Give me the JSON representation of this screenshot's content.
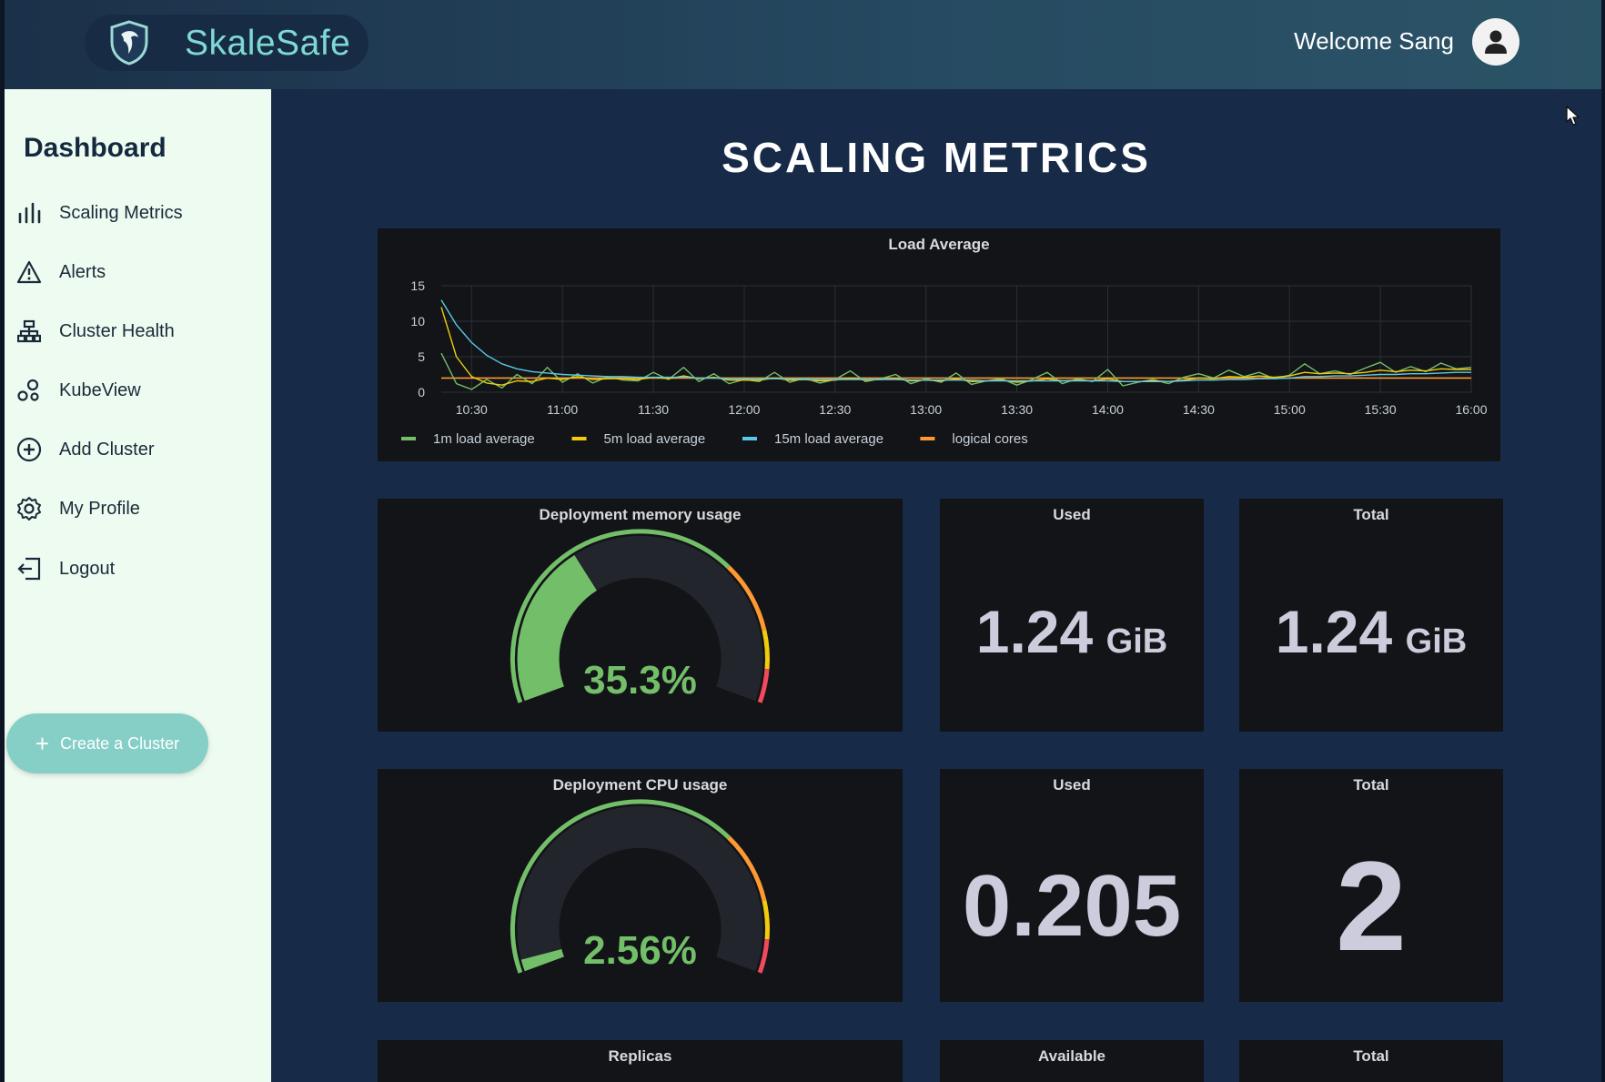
{
  "app": {
    "name": "SkaleSafe"
  },
  "header": {
    "welcome": "Welcome Sang"
  },
  "sidebar": {
    "title": "Dashboard",
    "items": [
      {
        "label": "Scaling Metrics",
        "icon": "bar-chart-icon"
      },
      {
        "label": "Alerts",
        "icon": "warning-icon"
      },
      {
        "label": "Cluster Health",
        "icon": "hierarchy-icon"
      },
      {
        "label": "KubeView",
        "icon": "bubbles-icon"
      },
      {
        "label": "Add Cluster",
        "icon": "plus-circle-icon"
      },
      {
        "label": "My Profile",
        "icon": "gear-icon"
      },
      {
        "label": "Logout",
        "icon": "logout-icon"
      }
    ],
    "create_button": "Create a Cluster"
  },
  "main": {
    "title": "SCALING METRICS"
  },
  "panels": {
    "memory": {
      "title": "Deployment memory usage",
      "value": "35.3%",
      "fraction": 0.353
    },
    "memory_used": {
      "title": "Used",
      "value": "1.24",
      "unit": "GiB"
    },
    "memory_total": {
      "title": "Total",
      "value": "1.24",
      "unit": "GiB"
    },
    "cpu": {
      "title": "Deployment CPU usage",
      "value": "2.56%",
      "fraction": 0.0256
    },
    "cpu_used": {
      "title": "Used",
      "value": "0.205"
    },
    "cpu_total": {
      "title": "Total",
      "value": "2"
    },
    "replicas": {
      "title": "Replicas"
    },
    "available": {
      "title": "Available"
    },
    "replicas_total": {
      "title": "Total"
    }
  },
  "colors": {
    "green": "#73bf69",
    "yellow": "#f2cc0c",
    "orange": "#ff9830",
    "red": "#f2495c",
    "blue": "#5ac8e8",
    "accent": "#7fd8d2"
  },
  "chart_data": {
    "type": "line",
    "title": "Load Average",
    "x": [
      "10:20",
      "10:25",
      "10:30",
      "10:35",
      "10:40",
      "10:45",
      "10:50",
      "10:55",
      "11:00",
      "11:05",
      "11:10",
      "11:15",
      "11:20",
      "11:25",
      "11:30",
      "11:35",
      "11:40",
      "11:45",
      "11:50",
      "11:55",
      "12:00",
      "12:05",
      "12:10",
      "12:15",
      "12:20",
      "12:25",
      "12:30",
      "12:35",
      "12:40",
      "12:45",
      "12:50",
      "12:55",
      "13:00",
      "13:05",
      "13:10",
      "13:15",
      "13:20",
      "13:25",
      "13:30",
      "13:35",
      "13:40",
      "13:45",
      "13:50",
      "13:55",
      "14:00",
      "14:05",
      "14:10",
      "14:15",
      "14:20",
      "14:25",
      "14:30",
      "14:35",
      "14:40",
      "14:45",
      "14:50",
      "14:55",
      "15:00",
      "15:05",
      "15:10",
      "15:15",
      "15:20",
      "15:25",
      "15:30",
      "15:35",
      "15:40",
      "15:45",
      "15:50",
      "15:55",
      "16:00"
    ],
    "xticks": [
      "10:30",
      "11:00",
      "11:30",
      "12:00",
      "12:30",
      "13:00",
      "13:30",
      "14:00",
      "14:30",
      "15:00",
      "15:30",
      "16:00"
    ],
    "ylim": [
      0,
      15
    ],
    "yticks": [
      0,
      5,
      10,
      15
    ],
    "series": [
      {
        "name": "1m load average",
        "color": "#73bf69",
        "values": [
          5.5,
          1.2,
          0.4,
          1.8,
          0.6,
          2.5,
          1.2,
          3.5,
          1.4,
          2.6,
          1.3,
          2.2,
          1.7,
          1.6,
          2.8,
          1.8,
          3.5,
          1.5,
          2.6,
          1.2,
          1.8,
          1.5,
          2.8,
          1.4,
          2.0,
          1.3,
          1.8,
          3.0,
          1.5,
          1.9,
          2.5,
          1.2,
          1.9,
          1.4,
          2.7,
          1.1,
          1.6,
          1.9,
          1.0,
          1.8,
          2.8,
          1.2,
          1.9,
          1.5,
          3.2,
          0.9,
          1.4,
          1.8,
          1.2,
          2.1,
          2.6,
          2.0,
          3.1,
          2.2,
          2.8,
          1.9,
          2.4,
          4.0,
          2.6,
          3.0,
          2.5,
          3.4,
          4.2,
          2.8,
          3.6,
          2.9,
          4.1,
          3.3,
          3.5
        ]
      },
      {
        "name": "5m load average",
        "color": "#f2cc0c",
        "values": [
          12.0,
          5.0,
          2.2,
          1.3,
          1.0,
          1.6,
          1.5,
          2.0,
          1.8,
          2.2,
          1.8,
          1.9,
          1.9,
          1.8,
          2.1,
          1.9,
          2.3,
          1.9,
          2.1,
          1.7,
          1.7,
          1.7,
          2.0,
          1.7,
          1.8,
          1.6,
          1.7,
          2.0,
          1.7,
          1.8,
          1.9,
          1.6,
          1.7,
          1.6,
          1.9,
          1.5,
          1.6,
          1.7,
          1.4,
          1.6,
          1.9,
          1.6,
          1.7,
          1.6,
          1.9,
          1.5,
          1.5,
          1.6,
          1.5,
          1.7,
          2.0,
          1.9,
          2.2,
          2.1,
          2.3,
          2.1,
          2.3,
          2.8,
          2.6,
          2.7,
          2.6,
          2.8,
          3.1,
          2.9,
          3.1,
          3.0,
          3.3,
          3.2,
          3.2
        ]
      },
      {
        "name": "15m load average",
        "color": "#5ac8e8",
        "values": [
          13.0,
          9.5,
          7.0,
          5.2,
          4.0,
          3.3,
          2.9,
          2.7,
          2.5,
          2.4,
          2.3,
          2.2,
          2.2,
          2.1,
          2.1,
          2.1,
          2.1,
          2.0,
          2.0,
          1.9,
          1.9,
          1.9,
          1.9,
          1.9,
          1.8,
          1.8,
          1.8,
          1.8,
          1.8,
          1.8,
          1.8,
          1.7,
          1.7,
          1.7,
          1.7,
          1.7,
          1.6,
          1.6,
          1.6,
          1.6,
          1.6,
          1.6,
          1.6,
          1.6,
          1.6,
          1.5,
          1.5,
          1.5,
          1.5,
          1.6,
          1.7,
          1.7,
          1.8,
          1.8,
          1.9,
          1.9,
          2.0,
          2.2,
          2.2,
          2.3,
          2.3,
          2.4,
          2.5,
          2.5,
          2.6,
          2.6,
          2.7,
          2.8,
          2.8
        ]
      },
      {
        "name": "logical cores",
        "color": "#ff9830",
        "values": [
          2,
          2,
          2,
          2,
          2,
          2,
          2,
          2,
          2,
          2,
          2,
          2,
          2,
          2,
          2,
          2,
          2,
          2,
          2,
          2,
          2,
          2,
          2,
          2,
          2,
          2,
          2,
          2,
          2,
          2,
          2,
          2,
          2,
          2,
          2,
          2,
          2,
          2,
          2,
          2,
          2,
          2,
          2,
          2,
          2,
          2,
          2,
          2,
          2,
          2,
          2,
          2,
          2,
          2,
          2,
          2,
          2,
          2,
          2,
          2,
          2,
          2,
          2,
          2,
          2,
          2,
          2,
          2,
          2
        ]
      }
    ],
    "legend": "bottom-left",
    "grid": true
  }
}
